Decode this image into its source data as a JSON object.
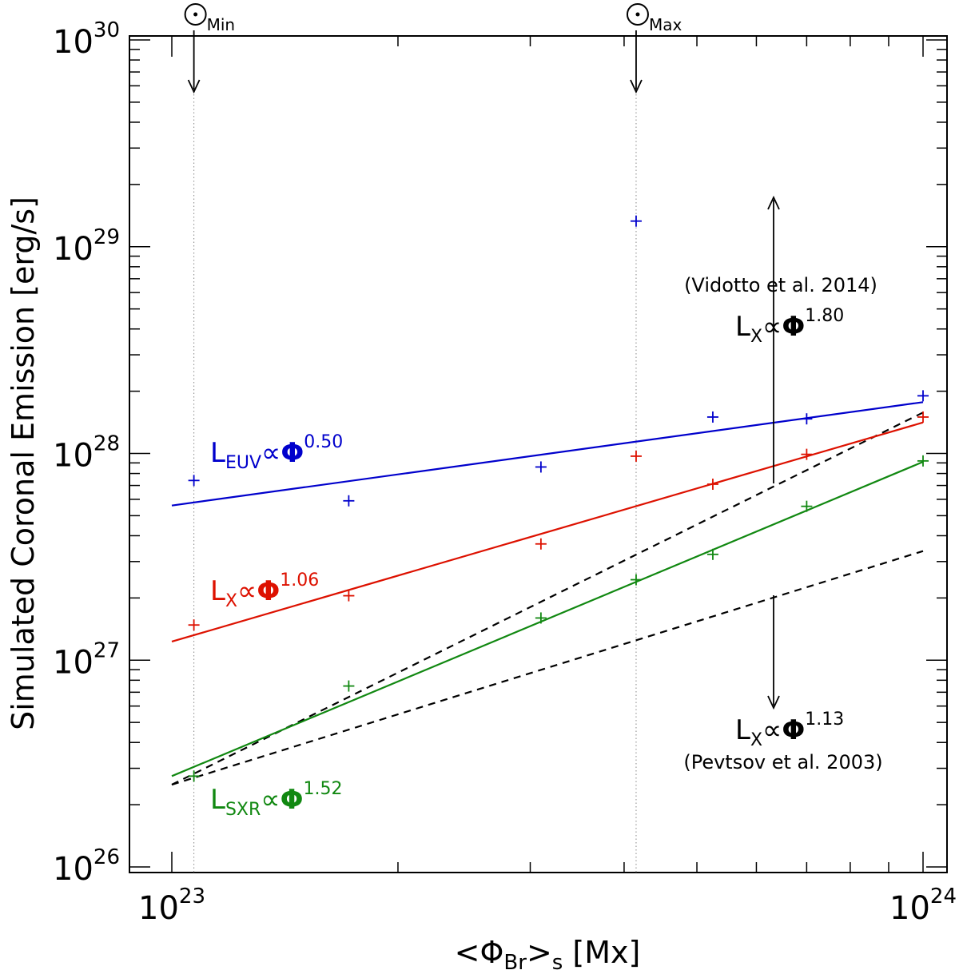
{
  "chart_data": {
    "type": "scatter",
    "title": "",
    "xlabel": "<Φ_Br>_s [Mx]",
    "ylabel": "Simulated Coronal Emission [erg/s]",
    "xscale": "log",
    "yscale": "log",
    "xlim": [
      1e+23,
      1e+24
    ],
    "ylim": [
      1e+26,
      1e+30
    ],
    "x_ticks": [
      {
        "value": 1e+23,
        "base": "10",
        "exp": "23"
      },
      {
        "value": 1e+24,
        "base": "10",
        "exp": "24"
      }
    ],
    "y_ticks": [
      {
        "value": 1e+26,
        "base": "10",
        "exp": "26"
      },
      {
        "value": 1e+27,
        "base": "10",
        "exp": "27"
      },
      {
        "value": 1e+28,
        "base": "10",
        "exp": "28"
      },
      {
        "value": 1e+29,
        "base": "10",
        "exp": "29"
      },
      {
        "value": 1e+30,
        "base": "10",
        "exp": "30"
      }
    ],
    "grid": false,
    "markers": [
      {
        "label": "⊙",
        "sub": "Min",
        "x": 1.07e+23
      },
      {
        "label": "⊙",
        "sub": "Max",
        "x": 4.15e+23
      }
    ],
    "series": [
      {
        "key": "euv",
        "color": "#0000cc",
        "x": [
          1.07e+23,
          1.72e+23,
          3.1e+23,
          4.15e+23,
          5.25e+23,
          7e+23,
          1e+24
        ],
        "y": [
          7.4e+27,
          5.9e+27,
          8.6e+27,
          1.33e+29,
          1.5e+28,
          1.47e+28,
          1.9e+28
        ],
        "fit": {
          "x0": 1e+23,
          "y0": 5.6e+27,
          "slope": 0.5
        },
        "fit_label": {
          "main": "L",
          "sub": "EUV",
          "mid": "∝",
          "sym": "Φ",
          "exp": "0.50"
        }
      },
      {
        "key": "x",
        "color": "#dd1100",
        "x": [
          1.07e+23,
          1.72e+23,
          3.1e+23,
          4.15e+23,
          5.25e+23,
          7e+23,
          1e+24
        ],
        "y": [
          1.48e+27,
          2.05e+27,
          3.65e+27,
          9.7e+27,
          7.1e+27,
          9.9e+27,
          1.5e+28
        ],
        "fit": {
          "x0": 1e+23,
          "y0": 1.23e+27,
          "slope": 1.06
        },
        "fit_label": {
          "main": "L",
          "sub": "X",
          "mid": "∝",
          "sym": "Φ",
          "exp": "1.06"
        }
      },
      {
        "key": "sxr",
        "color": "#118811",
        "x": [
          1.07e+23,
          1.72e+23,
          3.1e+23,
          4.15e+23,
          5.25e+23,
          7e+23,
          1e+24
        ],
        "y": [
          2.75e+26,
          7.5e+26,
          1.6e+27,
          2.45e+27,
          3.25e+27,
          5.55e+27,
          9.2e+27
        ],
        "fit": {
          "x0": 1e+23,
          "y0": 2.75e+26,
          "slope": 1.52
        },
        "fit_label": {
          "main": "L",
          "sub": "SXR",
          "mid": "∝",
          "sym": "Φ",
          "exp": "1.52"
        }
      }
    ],
    "reference_lines": [
      {
        "key": "vidotto",
        "style": "dashed",
        "slope": 1.8,
        "x0": 1e+23,
        "y0": 2.5e+26,
        "label": {
          "main": "L",
          "sub": "X",
          "mid": "∝",
          "sym": "Φ",
          "exp": "1.80"
        },
        "citation": "(Vidotto et al. 2014)",
        "arrow_dir": "up"
      },
      {
        "key": "pevtsov",
        "style": "dashed",
        "slope": 1.13,
        "x0": 1e+23,
        "y0": 2.5e+26,
        "label": {
          "main": "L",
          "sub": "X",
          "mid": "∝",
          "sym": "Φ",
          "exp": "1.13"
        },
        "citation": "(Pevtsov et al. 2003)",
        "arrow_dir": "down"
      }
    ]
  }
}
